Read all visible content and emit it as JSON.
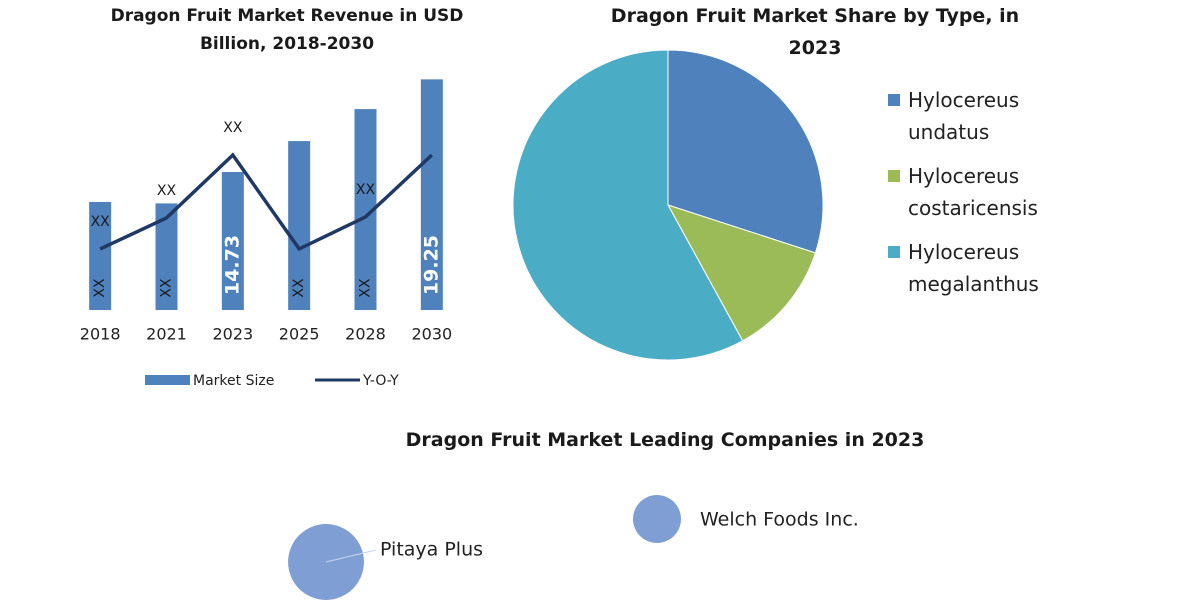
{
  "chart_data": [
    {
      "type": "bar-line",
      "title": "Dragon Fruit Market Revenue in USD Billion, 2018-2030",
      "categories": [
        "2018",
        "2021",
        "2023",
        "2025",
        "2028",
        "2030"
      ],
      "ylim": [
        8,
        20
      ],
      "series": [
        {
          "name": "Market Size",
          "type": "bar",
          "color": "#4f81bd",
          "values": [
            13.27,
            13.2,
            14.73,
            16.24,
            17.8,
            19.25
          ],
          "value_labels": [
            "XX",
            "XX",
            "14.73",
            "XX",
            "XX",
            "19.25"
          ]
        },
        {
          "name": "Y-O-Y",
          "type": "line",
          "color": "#1f3864",
          "values": [
            10.98,
            12.49,
            15.56,
            10.98,
            12.54,
            15.56
          ],
          "value_labels": [
            "XX",
            "XX",
            "XX",
            null,
            "XX",
            null
          ]
        }
      ]
    },
    {
      "type": "pie",
      "title": "Dragon Fruit Market Share by Type, in 2023",
      "categories": [
        "Hylocereus undatus",
        "Hylocereus costaricensis",
        "Hylocereus megalanthus"
      ],
      "values": [
        30,
        12,
        58
      ],
      "colors": [
        "#4f81bd",
        "#9bbb59",
        "#4bacc6"
      ],
      "legend": "right"
    },
    {
      "type": "bubble",
      "title": "Dragon Fruit Market Leading Companies in 2023",
      "categories": [
        "Pitaya Plus",
        "Welch Foods Inc."
      ],
      "values": [
        2.5,
        1
      ],
      "color": "#7f9fd4"
    }
  ]
}
